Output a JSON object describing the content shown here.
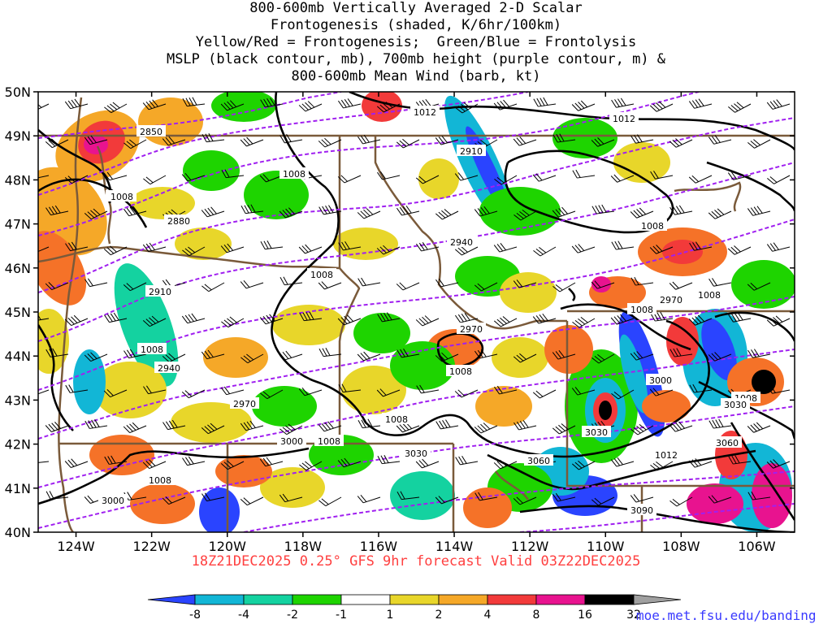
{
  "title_lines": [
    "800-600mb Vertically Averaged 2-D Scalar",
    "Frontogenesis (shaded, K/6hr/100km)",
    "Yellow/Red = Frontogenesis;  Green/Blue = Frontolysis",
    "MSLP (black contour, mb), 700mb height (purple contour, m) &",
    "800-600mb Mean Wind (barb, kt)"
  ],
  "valid_line": "18Z21DEC2025 0.25° GFS 9hr forecast Valid 03Z22DEC2025",
  "credit": "moe.met.fsu.edu/banding",
  "map": {
    "lon_range": [
      -125,
      -105
    ],
    "lat_range": [
      40,
      50
    ],
    "lat_labels": [
      "50N",
      "49N",
      "48N",
      "47N",
      "46N",
      "45N",
      "44N",
      "43N",
      "42N",
      "41N",
      "40N"
    ],
    "lon_labels": [
      "124W",
      "122W",
      "120W",
      "118W",
      "116W",
      "114W",
      "112W",
      "110W",
      "108W",
      "106W"
    ],
    "mslp_labels": [
      "1012",
      "1012",
      "1008",
      "1008",
      "1008",
      "1008",
      "1008",
      "1008",
      "1008",
      "1008",
      "1008",
      "1008",
      "1008",
      "1008",
      "1012",
      "1008"
    ],
    "height_labels": [
      "2850",
      "2910",
      "2880",
      "2940",
      "2910",
      "2940",
      "2970",
      "2970",
      "2970",
      "3000",
      "3000",
      "3030",
      "3030",
      "3060",
      "3000",
      "3060",
      "3090",
      "3030"
    ],
    "fill_colors": {
      "frontolysis_strong": "#2a44ff",
      "frontolysis_moderate": "#12b6d6",
      "frontolysis_weak": "#14d2a0",
      "frontolysis_light": "#1ed400",
      "frontogenesis_light": "#e8d62a",
      "frontogenesis_moderate": "#f5a828",
      "frontogenesis_strong": "#f57228",
      "frontogenesis_heavy": "#f23a3a",
      "frontogenesis_extreme": "#e8138f",
      "frontogenesis_max": "#000000"
    },
    "mslp_color": "#000000",
    "height_color": "#a020f0",
    "border_color": "#7a5a3a"
  },
  "colorbar": {
    "labels": [
      "-8",
      "-4",
      "-2",
      "-1",
      "1",
      "2",
      "4",
      "8",
      "16",
      "32"
    ],
    "colors": [
      "#2a44ff",
      "#12b6d6",
      "#14d2a0",
      "#1ed400",
      "#ffffff",
      "#e8d62a",
      "#f5a828",
      "#f23a3a",
      "#e8138f",
      "#000000",
      "#a0a0a0"
    ]
  }
}
